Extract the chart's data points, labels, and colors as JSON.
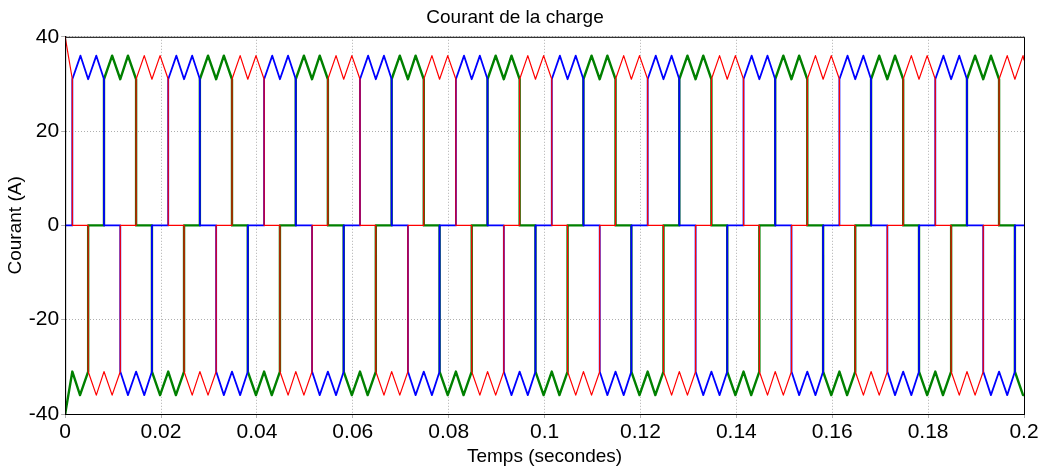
{
  "chart_data": {
    "type": "line",
    "title": "Courant de la charge",
    "xlabel": "Temps (secondes)",
    "ylabel": "Courant (A)",
    "xlim": [
      0,
      0.2
    ],
    "xticks": [
      0,
      0.02,
      0.04,
      0.06,
      0.08,
      0.1,
      0.12,
      0.14,
      0.16,
      0.18,
      0.2
    ],
    "ylim": [
      -40,
      40
    ],
    "yticks": [
      -40,
      -20,
      0,
      20,
      40
    ],
    "grid": true,
    "legend": false,
    "series": [
      {
        "color": "#ff0000",
        "x": [
          0,
          0.0015,
          0.0015,
          0.0048,
          0.0048,
          0.0065,
          0.0081,
          0.0098,
          0.0115,
          0.0115,
          0.0148,
          0.0148,
          0.0165,
          0.0181,
          0.0198,
          0.0215,
          0.0215,
          0.0248,
          0.0248,
          0.0265,
          0.0281,
          0.0298,
          0.0315,
          0.0315,
          0.0348,
          0.0348,
          0.0365,
          0.0381,
          0.0398,
          0.0415,
          0.0415,
          0.0448,
          0.0448,
          0.0465,
          0.0481,
          0.0498,
          0.0515,
          0.0515,
          0.0548,
          0.0548,
          0.0565,
          0.0581,
          0.0598,
          0.0615,
          0.0615,
          0.0648,
          0.0648,
          0.0665,
          0.0681,
          0.0698,
          0.0715,
          0.0715,
          0.0748,
          0.0748,
          0.0765,
          0.0781,
          0.0798,
          0.0815,
          0.0815,
          0.0848,
          0.0848,
          0.0865,
          0.0881,
          0.0898,
          0.0915,
          0.0915,
          0.0948,
          0.0948,
          0.0965,
          0.0981,
          0.0998,
          0.1015,
          0.1015,
          0.1048,
          0.1048,
          0.1065,
          0.1081,
          0.1098,
          0.1115,
          0.1115,
          0.1148,
          0.1148,
          0.1165,
          0.1181,
          0.1198,
          0.1215,
          0.1215,
          0.1248,
          0.1248,
          0.1265,
          0.1281,
          0.1298,
          0.1315,
          0.1315,
          0.1348,
          0.1348,
          0.1365,
          0.1381,
          0.1398,
          0.1415,
          0.1415,
          0.1448,
          0.1448,
          0.1465,
          0.1481,
          0.1498,
          0.1515,
          0.1515,
          0.1548,
          0.1548,
          0.1565,
          0.1581,
          0.1598,
          0.1615,
          0.1615,
          0.1648,
          0.1648,
          0.1665,
          0.1681,
          0.1698,
          0.1715,
          0.1715,
          0.1748,
          0.1748,
          0.1765,
          0.1781,
          0.1798,
          0.1815,
          0.1815,
          0.1848,
          0.1848,
          0.1865,
          0.1881,
          0.1898,
          0.1915,
          0.1915,
          0.1948,
          0.1948,
          0.1965,
          0.1981,
          0.1998,
          0.2
        ],
        "values": [
          40,
          31,
          0,
          0,
          -31,
          -36,
          -31,
          -36,
          -31,
          0,
          0,
          31,
          36,
          31,
          36,
          31,
          0,
          0,
          -31,
          -36,
          -31,
          -36,
          -31,
          0,
          0,
          31,
          36,
          31,
          36,
          31,
          0,
          0,
          -31,
          -36,
          -31,
          -36,
          -31,
          0,
          0,
          31,
          36,
          31,
          36,
          31,
          0,
          0,
          -31,
          -36,
          -31,
          -36,
          -31,
          0,
          0,
          31,
          36,
          31,
          36,
          31,
          0,
          0,
          -31,
          -36,
          -31,
          -36,
          -31,
          0,
          0,
          31,
          36,
          31,
          36,
          31,
          0,
          0,
          -31,
          -36,
          -31,
          -36,
          -31,
          0,
          0,
          31,
          36,
          31,
          36,
          31,
          0,
          0,
          -31,
          -36,
          -31,
          -36,
          -31,
          0,
          0,
          31,
          36,
          31,
          36,
          31,
          0,
          0,
          -31,
          -36,
          -31,
          -36,
          -31,
          0,
          0,
          31,
          36,
          31,
          36,
          31,
          0,
          0,
          -31,
          -36,
          -31,
          -36,
          -31,
          0,
          0,
          31,
          36,
          31,
          36,
          31,
          0,
          0,
          -31,
          -36,
          -31,
          -36,
          -31,
          0,
          0,
          31,
          36,
          31,
          36,
          35
        ]
      },
      {
        "color": "#0000ff",
        "x": [
          0,
          0.0015,
          0.0015,
          0.0032,
          0.0048,
          0.0065,
          0.0081,
          0.0081,
          0.0115,
          0.0115,
          0.0131,
          0.0148,
          0.0165,
          0.0181,
          0.0181,
          0.0215,
          0.0215,
          0.0232,
          0.0248,
          0.0265,
          0.0281,
          0.0281,
          0.0315,
          0.0315,
          0.0331,
          0.0348,
          0.0365,
          0.0381,
          0.0381,
          0.0415,
          0.0415,
          0.0432,
          0.0448,
          0.0465,
          0.0481,
          0.0481,
          0.0515,
          0.0515,
          0.0531,
          0.0548,
          0.0565,
          0.0581,
          0.0581,
          0.0615,
          0.0615,
          0.0632,
          0.0648,
          0.0665,
          0.0681,
          0.0681,
          0.0715,
          0.0715,
          0.0731,
          0.0748,
          0.0765,
          0.0781,
          0.0781,
          0.0815,
          0.0815,
          0.0832,
          0.0848,
          0.0865,
          0.0881,
          0.0881,
          0.0915,
          0.0915,
          0.0931,
          0.0948,
          0.0965,
          0.0981,
          0.0981,
          0.1015,
          0.1015,
          0.1032,
          0.1048,
          0.1065,
          0.1081,
          0.1081,
          0.1115,
          0.1115,
          0.1131,
          0.1148,
          0.1165,
          0.1181,
          0.1181,
          0.1215,
          0.1215,
          0.1232,
          0.1248,
          0.1265,
          0.1281,
          0.1281,
          0.1315,
          0.1315,
          0.1331,
          0.1348,
          0.1365,
          0.1381,
          0.1381,
          0.1415,
          0.1415,
          0.1432,
          0.1448,
          0.1465,
          0.1481,
          0.1481,
          0.1515,
          0.1515,
          0.1531,
          0.1548,
          0.1565,
          0.1581,
          0.1581,
          0.1615,
          0.1615,
          0.1632,
          0.1648,
          0.1665,
          0.1681,
          0.1681,
          0.1715,
          0.1715,
          0.1731,
          0.1748,
          0.1765,
          0.1781,
          0.1781,
          0.1815,
          0.1815,
          0.1832,
          0.1848,
          0.1865,
          0.1881,
          0.1881,
          0.1915,
          0.1915,
          0.1931,
          0.1948,
          0.1965,
          0.1981,
          0.1981,
          0.2
        ],
        "values": [
          0,
          0,
          31,
          36,
          31,
          36,
          31,
          0,
          0,
          -31,
          -36,
          -31,
          -36,
          -31,
          0,
          0,
          31,
          36,
          31,
          36,
          31,
          0,
          0,
          -31,
          -36,
          -31,
          -36,
          -31,
          0,
          0,
          31,
          36,
          31,
          36,
          31,
          0,
          0,
          -31,
          -36,
          -31,
          -36,
          -31,
          0,
          0,
          31,
          36,
          31,
          36,
          31,
          0,
          0,
          -31,
          -36,
          -31,
          -36,
          -31,
          0,
          0,
          31,
          36,
          31,
          36,
          31,
          0,
          0,
          -31,
          -36,
          -31,
          -36,
          -31,
          0,
          0,
          31,
          36,
          31,
          36,
          31,
          0,
          0,
          -31,
          -36,
          -31,
          -36,
          -31,
          0,
          0,
          31,
          36,
          31,
          36,
          31,
          0,
          0,
          -31,
          -36,
          -31,
          -36,
          -31,
          0,
          0,
          31,
          36,
          31,
          36,
          31,
          0,
          0,
          -31,
          -36,
          -31,
          -36,
          -31,
          0,
          0,
          31,
          36,
          31,
          36,
          31,
          0,
          0,
          -31,
          -36,
          -31,
          -36,
          -31,
          0,
          0,
          31,
          36,
          31,
          36,
          31,
          0,
          0,
          -31,
          -36,
          -31,
          -36,
          -31,
          0,
          0
        ]
      },
      {
        "color": "#008000",
        "x": [
          0,
          0.0015,
          0.0031,
          0.0048,
          0.0048,
          0.0081,
          0.0081,
          0.0098,
          0.0115,
          0.0131,
          0.0148,
          0.0148,
          0.0181,
          0.0181,
          0.0198,
          0.0215,
          0.0231,
          0.0248,
          0.0248,
          0.0281,
          0.0281,
          0.0298,
          0.0315,
          0.0331,
          0.0348,
          0.0348,
          0.0381,
          0.0381,
          0.0398,
          0.0415,
          0.0431,
          0.0448,
          0.0448,
          0.0481,
          0.0481,
          0.0498,
          0.0515,
          0.0531,
          0.0548,
          0.0548,
          0.0581,
          0.0581,
          0.0598,
          0.0615,
          0.0631,
          0.0648,
          0.0648,
          0.0681,
          0.0681,
          0.0698,
          0.0715,
          0.0731,
          0.0748,
          0.0748,
          0.0781,
          0.0781,
          0.0798,
          0.0815,
          0.0831,
          0.0848,
          0.0848,
          0.0881,
          0.0881,
          0.0898,
          0.0915,
          0.0931,
          0.0948,
          0.0948,
          0.0981,
          0.0981,
          0.0998,
          0.1015,
          0.1031,
          0.1048,
          0.1048,
          0.1081,
          0.1081,
          0.1098,
          0.1115,
          0.1131,
          0.1148,
          0.1148,
          0.1181,
          0.1181,
          0.1198,
          0.1215,
          0.1231,
          0.1248,
          0.1248,
          0.1281,
          0.1281,
          0.1298,
          0.1315,
          0.1331,
          0.1348,
          0.1348,
          0.1381,
          0.1381,
          0.1398,
          0.1415,
          0.1431,
          0.1448,
          0.1448,
          0.1481,
          0.1481,
          0.1498,
          0.1515,
          0.1531,
          0.1548,
          0.1548,
          0.1581,
          0.1581,
          0.1598,
          0.1615,
          0.1631,
          0.1648,
          0.1648,
          0.1681,
          0.1681,
          0.1698,
          0.1715,
          0.1731,
          0.1748,
          0.1748,
          0.1781,
          0.1781,
          0.1798,
          0.1815,
          0.1831,
          0.1848,
          0.1848,
          0.1881,
          0.1881,
          0.1898,
          0.1915,
          0.1931,
          0.1948,
          0.1948,
          0.1981,
          0.1981,
          0.1998,
          0.2
        ],
        "values": [
          -40,
          -31,
          -36,
          -31,
          0,
          0,
          31,
          36,
          31,
          36,
          31,
          0,
          0,
          -31,
          -36,
          -31,
          -36,
          -31,
          0,
          0,
          31,
          36,
          31,
          36,
          31,
          0,
          0,
          -31,
          -36,
          -31,
          -36,
          -31,
          0,
          0,
          31,
          36,
          31,
          36,
          31,
          0,
          0,
          -31,
          -36,
          -31,
          -36,
          -31,
          0,
          0,
          31,
          36,
          31,
          36,
          31,
          0,
          0,
          -31,
          -36,
          -31,
          -36,
          -31,
          0,
          0,
          31,
          36,
          31,
          36,
          31,
          0,
          0,
          -31,
          -36,
          -31,
          -36,
          -31,
          0,
          0,
          31,
          36,
          31,
          36,
          31,
          0,
          0,
          -31,
          -36,
          -31,
          -36,
          -31,
          0,
          0,
          31,
          36,
          31,
          36,
          31,
          0,
          0,
          -31,
          -36,
          -31,
          -36,
          -31,
          0,
          0,
          31,
          36,
          31,
          36,
          31,
          0,
          0,
          -31,
          -36,
          -31,
          -36,
          -31,
          0,
          0,
          31,
          36,
          31,
          36,
          31,
          0,
          0,
          -31,
          -36,
          -31,
          -36,
          -31,
          0,
          0,
          31,
          36,
          31,
          36,
          31,
          0,
          0,
          -31,
          -36,
          -36
        ]
      }
    ]
  }
}
